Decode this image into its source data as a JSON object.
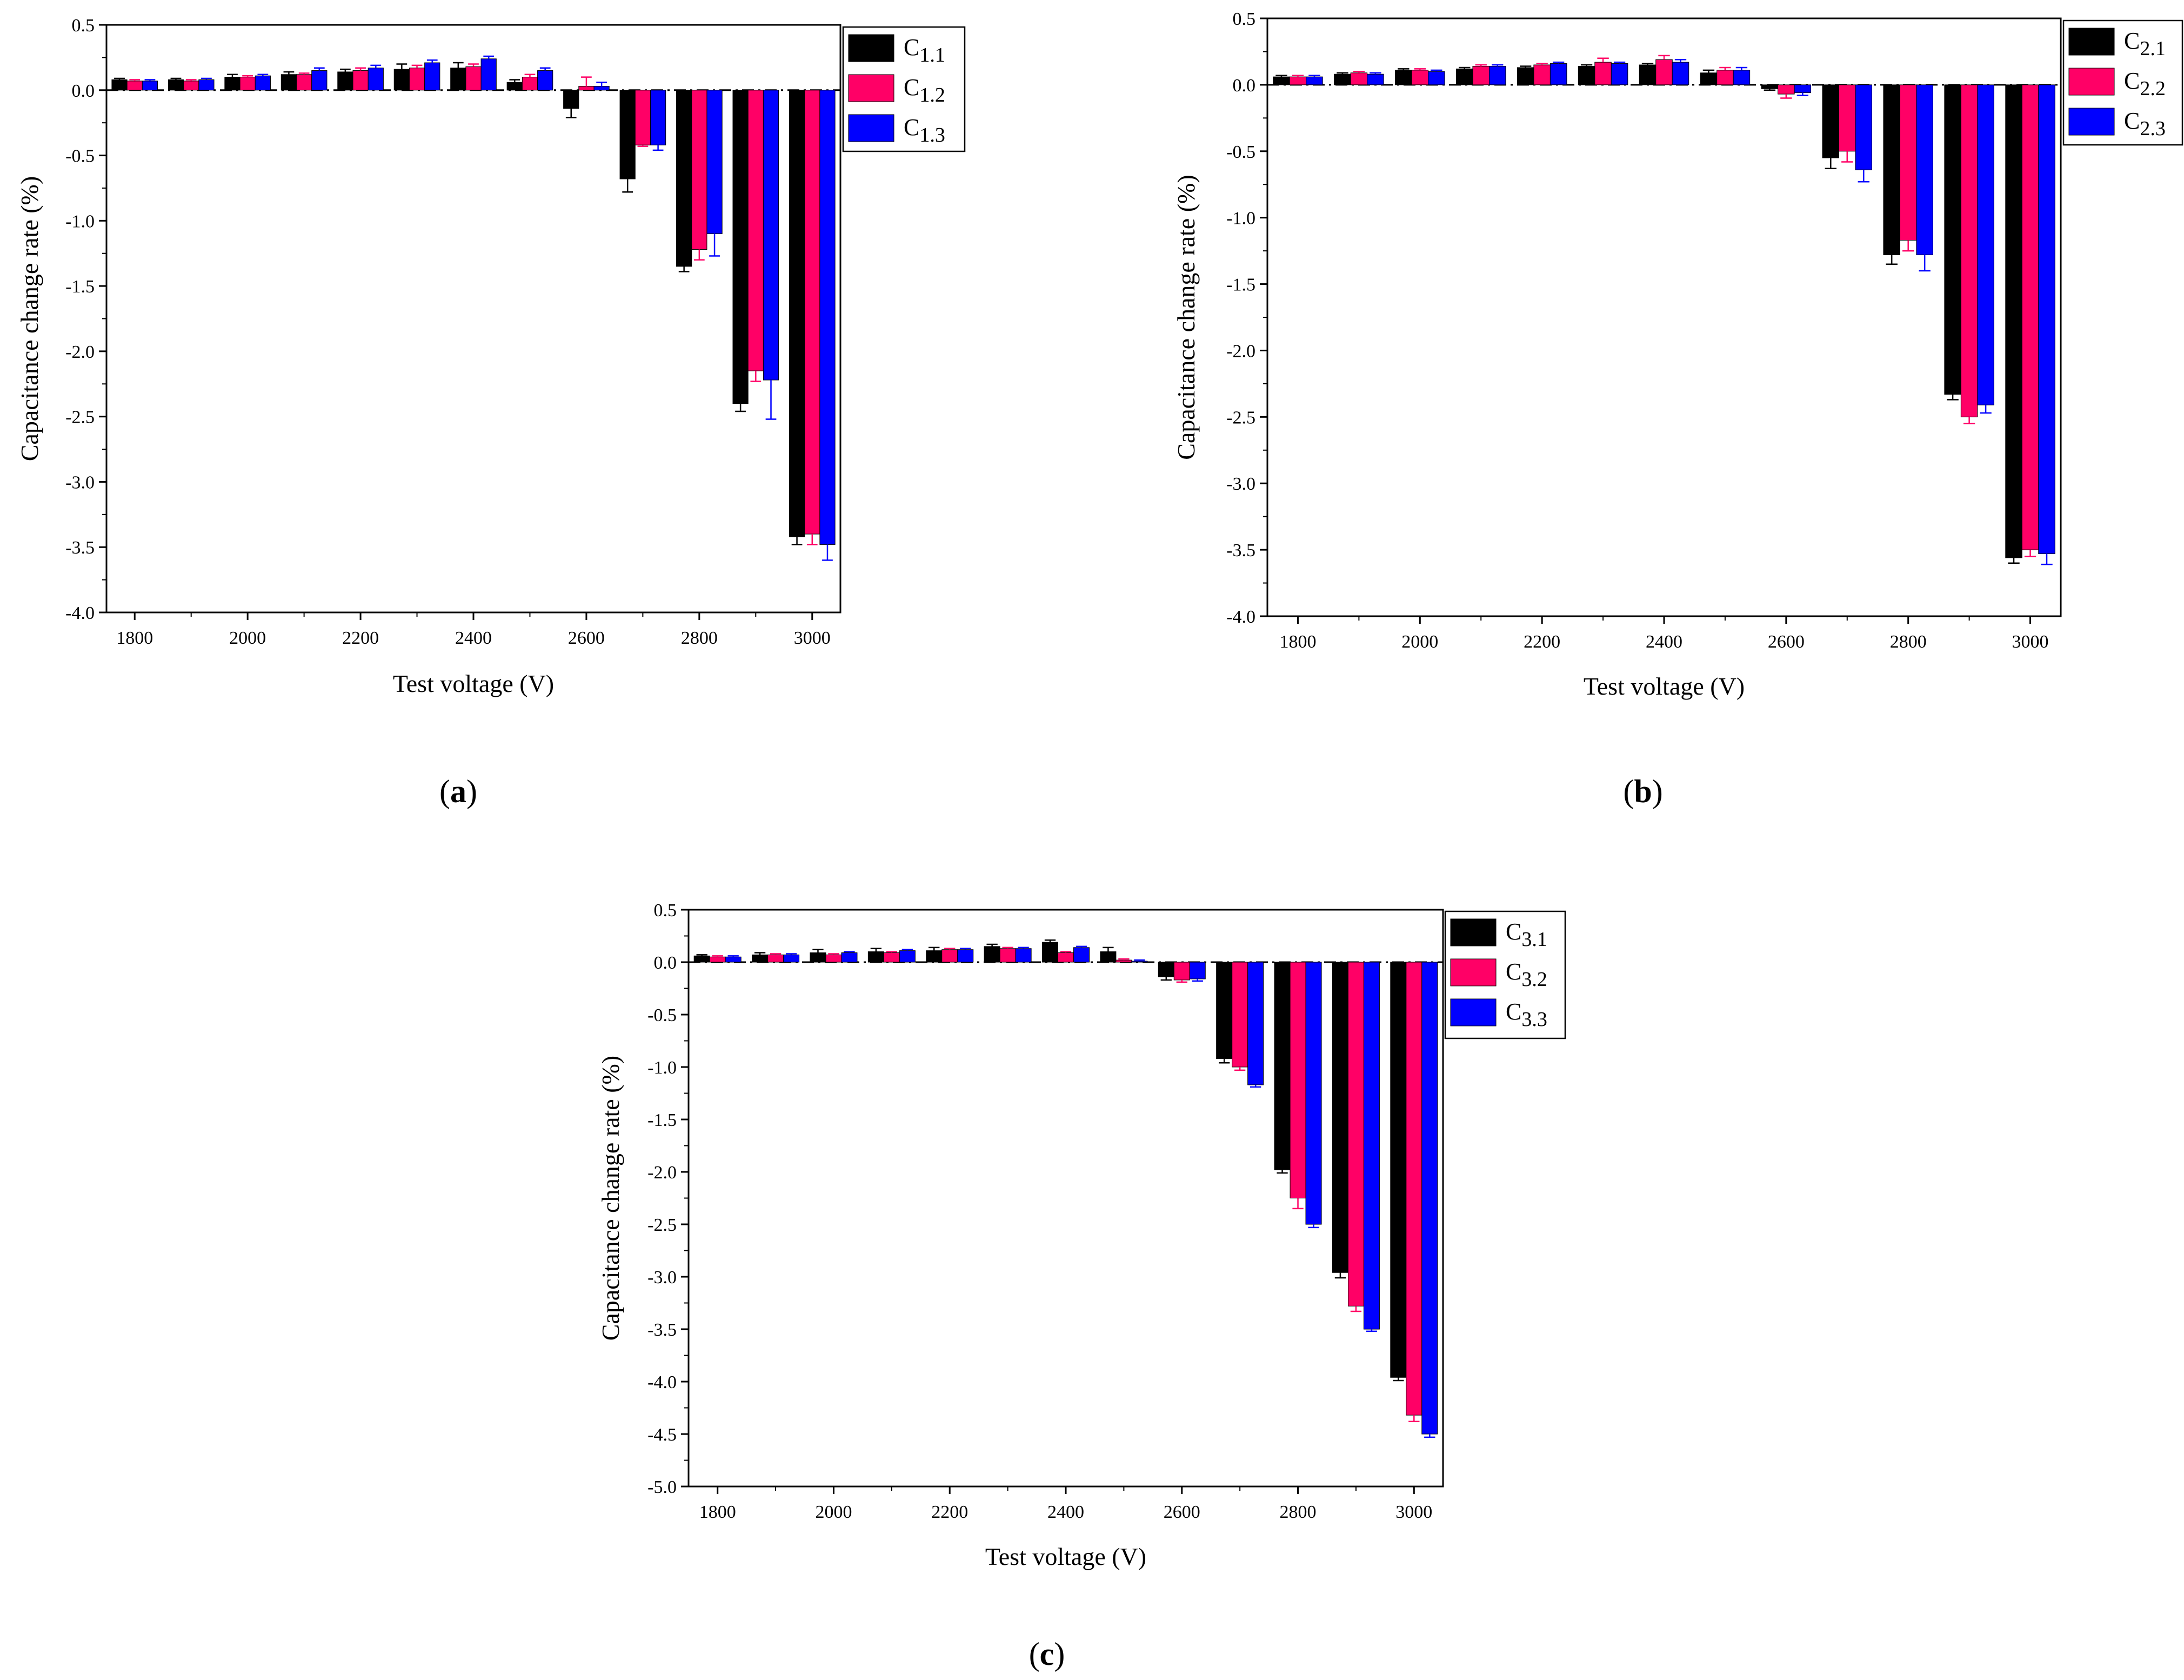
{
  "colors": {
    "s1": "#000000",
    "s2": "#ff0066",
    "s3": "#0000ff",
    "axis": "#000000"
  },
  "chart_data": [
    {
      "type": "bar",
      "panel_label": "a",
      "xlabel": "Test voltage (V)",
      "ylabel": "Capacitance change rate (%)",
      "ylim": [
        -4.0,
        0.5
      ],
      "yticks": [
        "0.5",
        "0.0",
        "-0.5",
        "-1.0",
        "-1.5",
        "-2.0",
        "-2.5",
        "-3.0",
        "-3.5",
        "-4.0"
      ],
      "categories": [
        1800,
        1900,
        2000,
        2100,
        2200,
        2300,
        2400,
        2500,
        2600,
        2700,
        2800,
        2900,
        3000
      ],
      "xticks": [
        "1800",
        "2000",
        "2200",
        "2400",
        "2600",
        "2800",
        "3000"
      ],
      "legend_position": "top-right-outside",
      "series": [
        {
          "name": "C",
          "sub": "1.1",
          "values": [
            0.08,
            0.08,
            0.1,
            0.12,
            0.14,
            0.16,
            0.17,
            0.06,
            -0.14,
            -0.68,
            -1.35,
            -2.4,
            -3.42
          ],
          "errors": [
            0.01,
            0.01,
            0.02,
            0.02,
            0.02,
            0.04,
            0.04,
            0.02,
            0.07,
            0.1,
            0.04,
            0.06,
            0.06
          ]
        },
        {
          "name": "C",
          "sub": "1.2",
          "values": [
            0.07,
            0.07,
            0.1,
            0.12,
            0.15,
            0.17,
            0.18,
            0.1,
            0.03,
            -0.42,
            -1.22,
            -2.15,
            -3.4
          ],
          "errors": [
            0.01,
            0.01,
            0.01,
            0.01,
            0.02,
            0.02,
            0.02,
            0.02,
            0.07,
            0.01,
            0.08,
            0.08,
            0.08
          ]
        },
        {
          "name": "C",
          "sub": "1.3",
          "values": [
            0.07,
            0.08,
            0.11,
            0.15,
            0.17,
            0.21,
            0.24,
            0.15,
            0.03,
            -0.42,
            -1.1,
            -2.22,
            -3.48
          ],
          "errors": [
            0.01,
            0.01,
            0.01,
            0.02,
            0.02,
            0.02,
            0.02,
            0.02,
            0.03,
            0.04,
            0.17,
            0.3,
            0.12
          ]
        }
      ]
    },
    {
      "type": "bar",
      "panel_label": "b",
      "xlabel": "Test voltage (V)",
      "ylabel": "Capacitance change rate (%)",
      "ylim": [
        -4.0,
        0.5
      ],
      "yticks": [
        "0.5",
        "0.0",
        "-0.5",
        "-1.0",
        "-1.5",
        "-2.0",
        "-2.5",
        "-3.0",
        "-3.5",
        "-4.0"
      ],
      "categories": [
        1800,
        1900,
        2000,
        2100,
        2200,
        2300,
        2400,
        2500,
        2600,
        2700,
        2800,
        2900,
        3000
      ],
      "xticks": [
        "1800",
        "2000",
        "2200",
        "2400",
        "2600",
        "2800",
        "3000"
      ],
      "legend_position": "top-right-outside",
      "series": [
        {
          "name": "C",
          "sub": "2.1",
          "values": [
            0.06,
            0.08,
            0.11,
            0.12,
            0.13,
            0.14,
            0.15,
            0.09,
            -0.03,
            -0.55,
            -1.28,
            -2.33,
            -3.56
          ],
          "errors": [
            0.01,
            0.01,
            0.01,
            0.01,
            0.01,
            0.01,
            0.01,
            0.02,
            0.01,
            0.08,
            0.07,
            0.04,
            0.04
          ]
        },
        {
          "name": "C",
          "sub": "2.2",
          "values": [
            0.06,
            0.09,
            0.11,
            0.14,
            0.15,
            0.17,
            0.19,
            0.11,
            -0.07,
            -0.5,
            -1.17,
            -2.5,
            -3.5
          ],
          "errors": [
            0.01,
            0.01,
            0.01,
            0.01,
            0.01,
            0.03,
            0.03,
            0.02,
            0.03,
            0.08,
            0.08,
            0.05,
            0.05
          ]
        },
        {
          "name": "C",
          "sub": "2.3",
          "values": [
            0.06,
            0.08,
            0.1,
            0.14,
            0.16,
            0.16,
            0.17,
            0.11,
            -0.06,
            -0.64,
            -1.28,
            -2.41,
            -3.53
          ],
          "errors": [
            0.01,
            0.01,
            0.01,
            0.01,
            0.01,
            0.01,
            0.02,
            0.02,
            0.02,
            0.09,
            0.12,
            0.06,
            0.08
          ]
        }
      ]
    },
    {
      "type": "bar",
      "panel_label": "c",
      "xlabel": "Test voltage (V)",
      "ylabel": "Capacitance change rate (%)",
      "ylim": [
        -5.0,
        0.5
      ],
      "yticks": [
        "0.5",
        "0.0",
        "-0.5",
        "-1.0",
        "-1.5",
        "-2.0",
        "-2.5",
        "-3.0",
        "-3.5",
        "-4.0",
        "-4.5",
        "-5.0"
      ],
      "categories": [
        1800,
        1900,
        2000,
        2100,
        2200,
        2300,
        2400,
        2500,
        2600,
        2700,
        2800,
        2900,
        3000
      ],
      "xticks": [
        "1800",
        "2000",
        "2200",
        "2400",
        "2600",
        "2800",
        "3000"
      ],
      "legend_position": "top-right-outside",
      "series": [
        {
          "name": "C",
          "sub": "3.1",
          "values": [
            0.06,
            0.07,
            0.09,
            0.1,
            0.11,
            0.15,
            0.19,
            0.1,
            -0.14,
            -0.92,
            -1.98,
            -2.96,
            -3.96
          ],
          "errors": [
            0.01,
            0.02,
            0.03,
            0.03,
            0.03,
            0.02,
            0.02,
            0.04,
            0.03,
            0.04,
            0.03,
            0.05,
            0.03
          ]
        },
        {
          "name": "C",
          "sub": "3.2",
          "values": [
            0.05,
            0.07,
            0.07,
            0.09,
            0.12,
            0.13,
            0.09,
            0.02,
            -0.17,
            -1.0,
            -2.25,
            -3.28,
            -4.32
          ],
          "errors": [
            0.01,
            0.01,
            0.01,
            0.01,
            0.01,
            0.01,
            0.01,
            0.01,
            0.02,
            0.03,
            0.1,
            0.05,
            0.06
          ]
        },
        {
          "name": "C",
          "sub": "3.3",
          "values": [
            0.05,
            0.07,
            0.09,
            0.11,
            0.12,
            0.13,
            0.14,
            0.01,
            -0.16,
            -1.17,
            -2.5,
            -3.5,
            -4.5
          ],
          "errors": [
            0.01,
            0.01,
            0.01,
            0.01,
            0.01,
            0.01,
            0.01,
            0.01,
            0.02,
            0.02,
            0.03,
            0.02,
            0.03
          ]
        }
      ]
    }
  ]
}
